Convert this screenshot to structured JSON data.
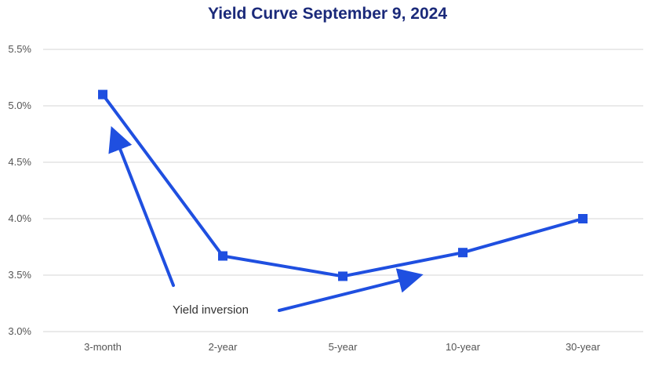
{
  "colors": {
    "title": "#1b2a7a",
    "series": "#1f4fe0",
    "grid": "#d6d6d6"
  },
  "chart_data": {
    "type": "line",
    "title": "Yield Curve September 9, 2024",
    "xlabel": "",
    "ylabel": "",
    "categories": [
      "3-month",
      "2-year",
      "5-year",
      "10-year",
      "30-year"
    ],
    "series": [
      {
        "values": [
          5.1,
          3.67,
          3.49,
          3.7,
          4.0
        ],
        "marker": "square"
      }
    ],
    "ylim": [
      3.0,
      5.5
    ],
    "yticks": [
      {
        "value": 5.5,
        "label": "5.5%"
      },
      {
        "value": 5.0,
        "label": "5.0%"
      },
      {
        "value": 4.5,
        "label": "4.5%"
      },
      {
        "value": 4.0,
        "label": "4.0%"
      },
      {
        "value": 3.5,
        "label": "3.5%"
      },
      {
        "value": 3.0,
        "label": "3.0%"
      }
    ],
    "grid": true,
    "legend": "none",
    "annotations": [
      {
        "text": "Yield inversion",
        "arrows": [
          {
            "points_toward": "3-month"
          },
          {
            "points_toward": "5-year to 10-year"
          }
        ]
      }
    ]
  }
}
